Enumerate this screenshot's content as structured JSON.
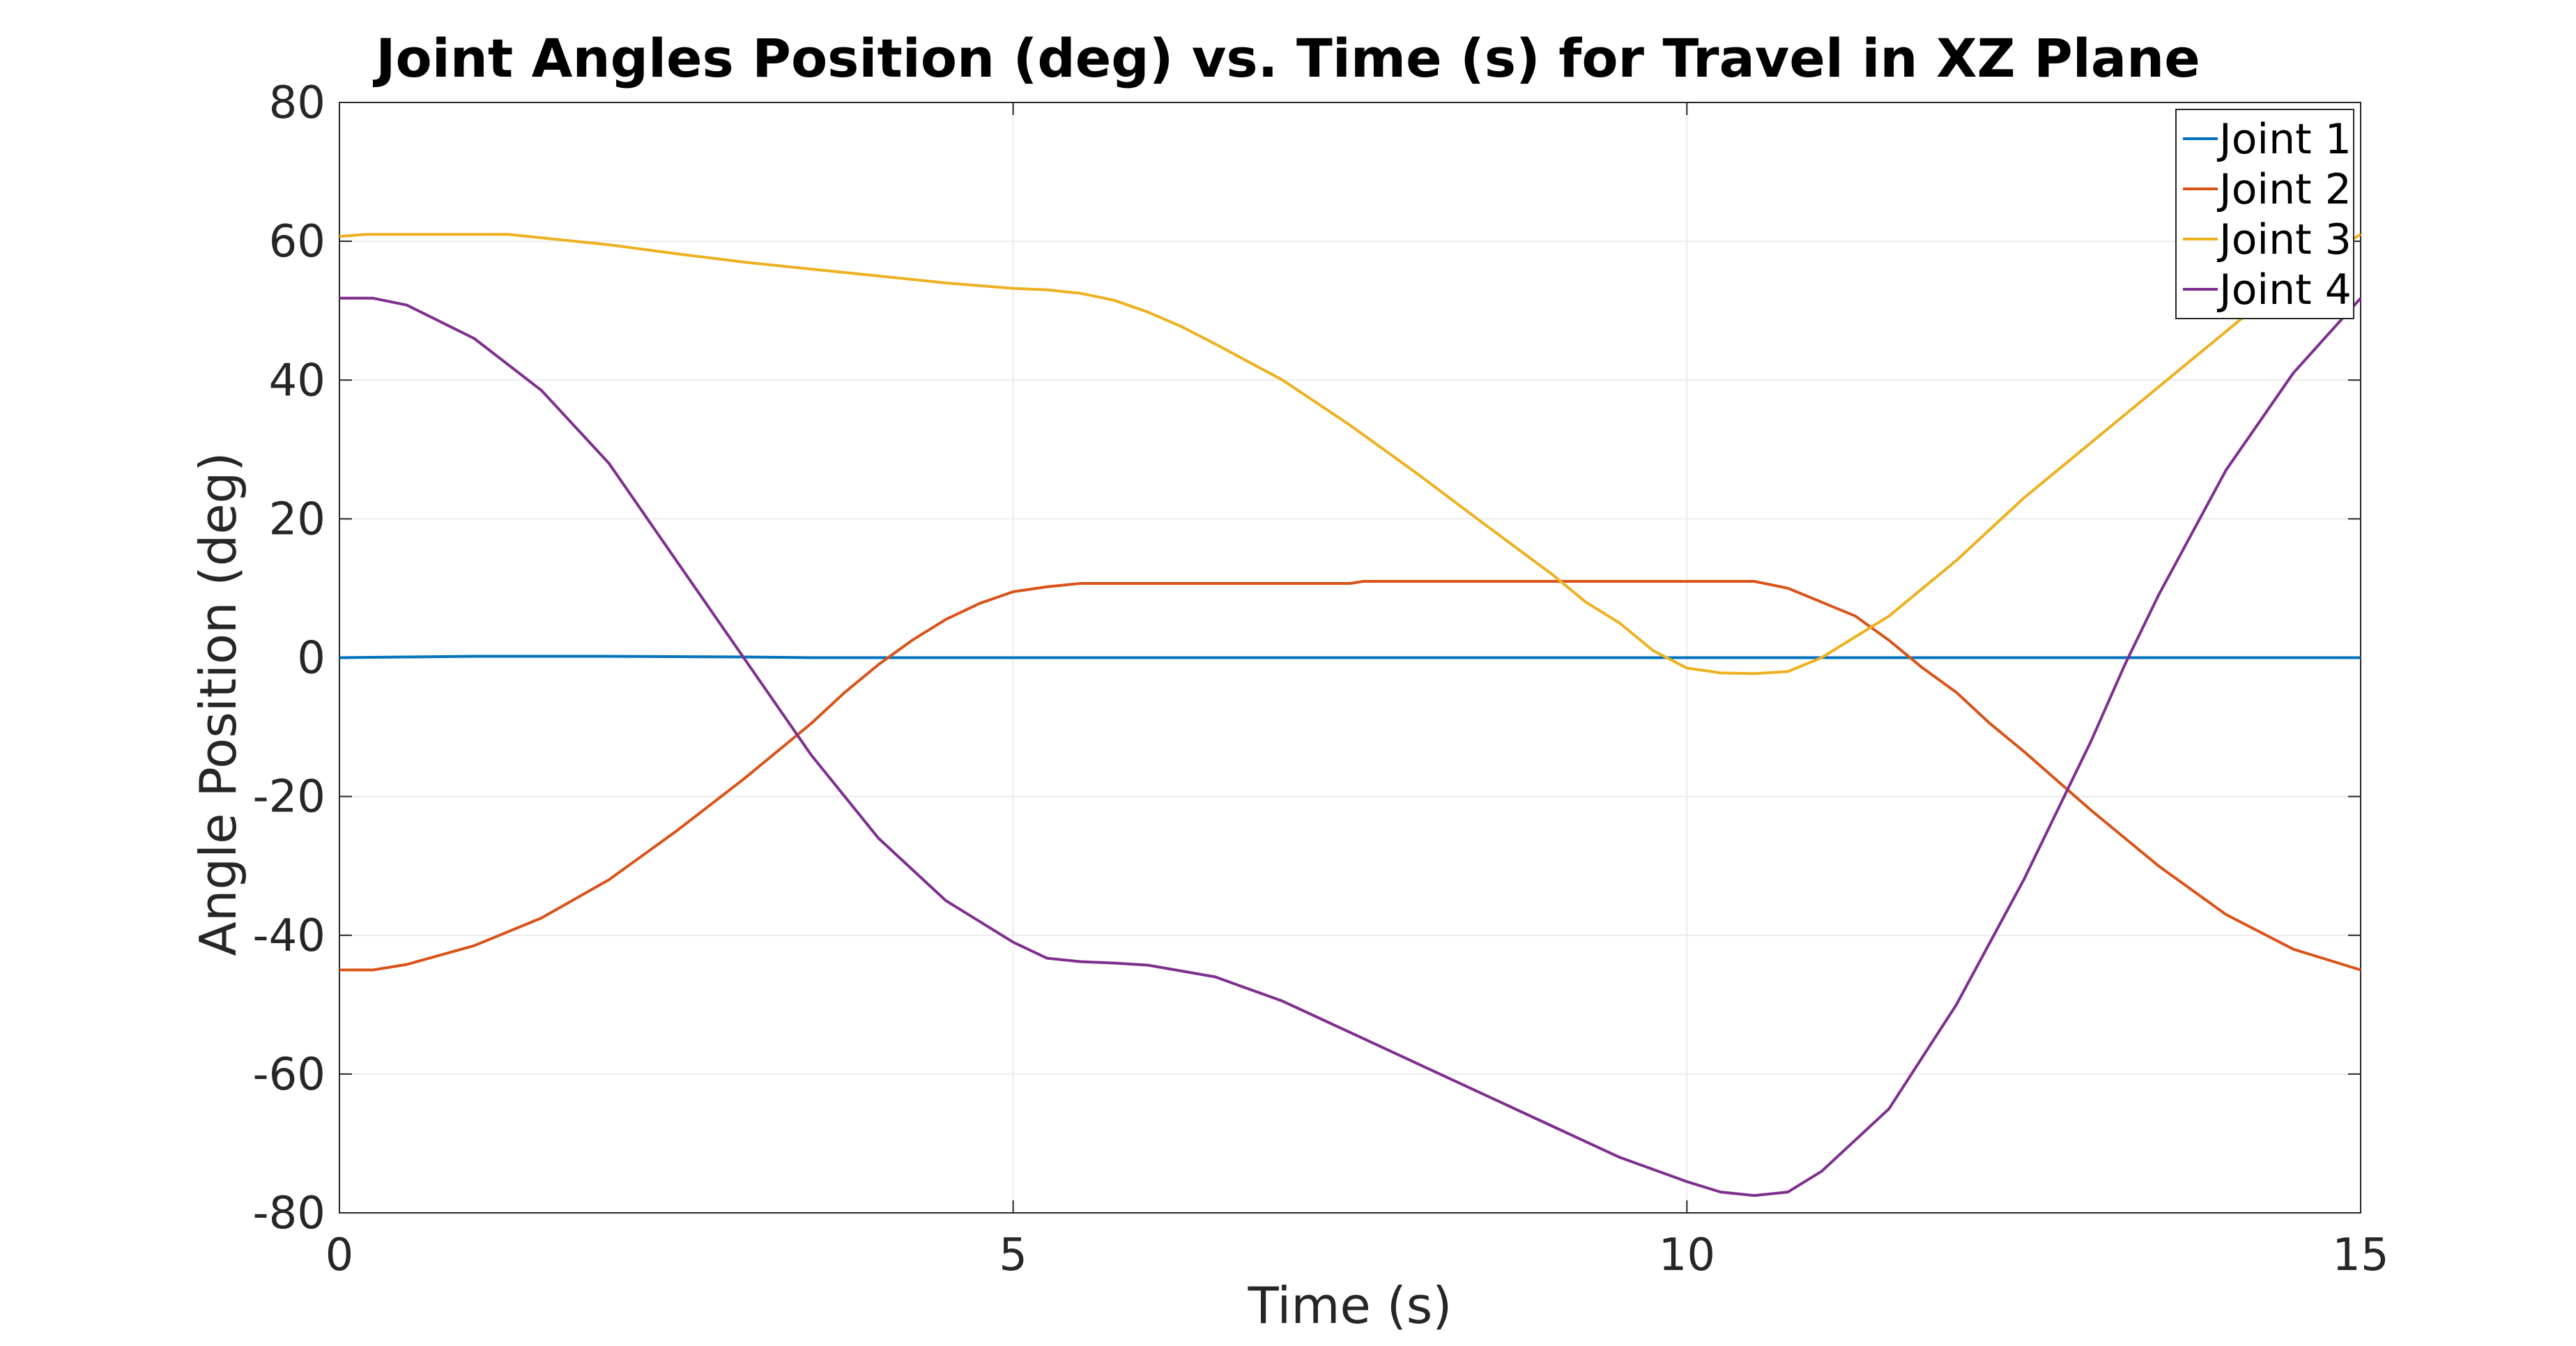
{
  "chart_data": {
    "type": "line",
    "title": "Joint Angles Position (deg) vs. Time (s) for Travel in XZ Plane",
    "xlabel": "Time (s)",
    "ylabel": "Angle Position (deg)",
    "xlim": [
      0,
      15
    ],
    "ylim": [
      -80,
      80
    ],
    "xticks": [
      "0",
      "5",
      "10",
      "15"
    ],
    "yticks": [
      "80",
      "60",
      "40",
      "20",
      "0",
      "-20",
      "-40",
      "-60",
      "-80"
    ],
    "grid": true,
    "legend_position": "top-right",
    "series": [
      {
        "name": "Joint 1",
        "color": "#0072BD",
        "points": [
          [
            0,
            0
          ],
          [
            0.5,
            0.1
          ],
          [
            1,
            0.2
          ],
          [
            2,
            0.2
          ],
          [
            3,
            0.1
          ],
          [
            3.5,
            0
          ],
          [
            5,
            0
          ],
          [
            7.5,
            0
          ],
          [
            10,
            0
          ],
          [
            12.5,
            0
          ],
          [
            15,
            0
          ]
        ]
      },
      {
        "name": "Joint 2",
        "color": "#D95319",
        "points": [
          [
            0,
            -45
          ],
          [
            0.25,
            -45
          ],
          [
            0.5,
            -44.2
          ],
          [
            1,
            -41.5
          ],
          [
            1.5,
            -37.5
          ],
          [
            2,
            -32
          ],
          [
            2.5,
            -25
          ],
          [
            3,
            -17.5
          ],
          [
            3.5,
            -9.5
          ],
          [
            3.75,
            -5
          ],
          [
            4,
            -1
          ],
          [
            4.25,
            2.5
          ],
          [
            4.5,
            5.5
          ],
          [
            4.75,
            7.8
          ],
          [
            5,
            9.5
          ],
          [
            5.25,
            10.2
          ],
          [
            5.5,
            10.7
          ],
          [
            7.5,
            10.7
          ],
          [
            7.6,
            11
          ],
          [
            10,
            11
          ],
          [
            10.5,
            11
          ],
          [
            10.75,
            10
          ],
          [
            11,
            8
          ],
          [
            11.25,
            6
          ],
          [
            11.5,
            2.5
          ],
          [
            11.75,
            -1.5
          ],
          [
            12,
            -5
          ],
          [
            12.25,
            -9.5
          ],
          [
            12.5,
            -13.5
          ],
          [
            13,
            -22
          ],
          [
            13.5,
            -30
          ],
          [
            14,
            -37
          ],
          [
            14.5,
            -42
          ],
          [
            15,
            -45
          ]
        ]
      },
      {
        "name": "Joint 3",
        "color": "#EDB120",
        "points": [
          [
            0,
            60.7
          ],
          [
            0.2,
            61
          ],
          [
            1.25,
            61
          ],
          [
            1.5,
            60.5
          ],
          [
            2,
            59.5
          ],
          [
            2.5,
            58.2
          ],
          [
            3,
            57
          ],
          [
            3.5,
            56
          ],
          [
            4,
            55
          ],
          [
            4.5,
            54
          ],
          [
            5,
            53.2
          ],
          [
            5.25,
            53
          ],
          [
            5.5,
            52.5
          ],
          [
            5.75,
            51.5
          ],
          [
            6,
            49.8
          ],
          [
            6.25,
            47.7
          ],
          [
            6.5,
            45.2
          ],
          [
            7,
            40
          ],
          [
            7.5,
            33.5
          ],
          [
            8,
            26.5
          ],
          [
            8.5,
            19.2
          ],
          [
            9,
            12
          ],
          [
            9.25,
            8
          ],
          [
            9.5,
            5
          ],
          [
            9.75,
            1
          ],
          [
            10,
            -1.5
          ],
          [
            10.25,
            -2.2
          ],
          [
            10.5,
            -2.3
          ],
          [
            10.75,
            -2
          ],
          [
            11,
            0
          ],
          [
            11.25,
            3
          ],
          [
            11.5,
            6
          ],
          [
            12,
            14
          ],
          [
            12.5,
            23
          ],
          [
            13,
            31
          ],
          [
            13.5,
            39
          ],
          [
            14,
            47
          ],
          [
            14.5,
            55
          ],
          [
            15,
            61
          ]
        ]
      },
      {
        "name": "Joint 4",
        "color": "#7E2F8E",
        "points": [
          [
            0,
            51.8
          ],
          [
            0.25,
            51.8
          ],
          [
            0.5,
            50.8
          ],
          [
            1,
            46
          ],
          [
            1.5,
            38.5
          ],
          [
            2,
            28
          ],
          [
            2.5,
            14
          ],
          [
            3,
            0
          ],
          [
            3.5,
            -14
          ],
          [
            4,
            -26
          ],
          [
            4.5,
            -35
          ],
          [
            5,
            -41
          ],
          [
            5.25,
            -43.3
          ],
          [
            5.5,
            -43.8
          ],
          [
            5.75,
            -44
          ],
          [
            6,
            -44.3
          ],
          [
            6.5,
            -46
          ],
          [
            7,
            -49.5
          ],
          [
            7.5,
            -54
          ],
          [
            8,
            -58.5
          ],
          [
            8.5,
            -63
          ],
          [
            9,
            -67.5
          ],
          [
            9.5,
            -72
          ],
          [
            10,
            -75.5
          ],
          [
            10.25,
            -77
          ],
          [
            10.5,
            -77.5
          ],
          [
            10.75,
            -77
          ],
          [
            11,
            -74
          ],
          [
            11.5,
            -65
          ],
          [
            12,
            -50
          ],
          [
            12.5,
            -32
          ],
          [
            13,
            -12
          ],
          [
            13.25,
            -1
          ],
          [
            13.5,
            9
          ],
          [
            14,
            27
          ],
          [
            14.5,
            41
          ],
          [
            15,
            51.8
          ]
        ]
      }
    ]
  }
}
